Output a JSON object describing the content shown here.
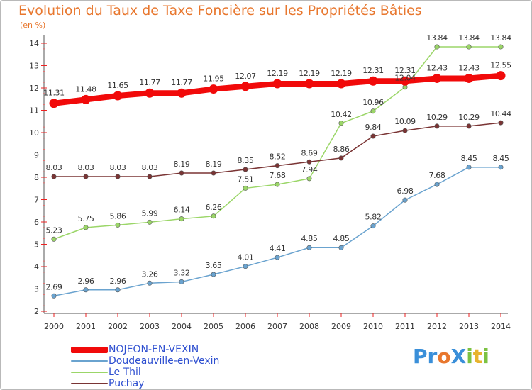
{
  "title": "Evolution du Taux de Taxe Foncière sur les Propriétés Bâties",
  "subtitle": "(en %)",
  "logo": {
    "text": "ProXiti",
    "letters": [
      {
        "ch": "P",
        "color": "#3a8fd9"
      },
      {
        "ch": "r",
        "color": "#3a8fd9"
      },
      {
        "ch": "o",
        "color": "#e8772e"
      },
      {
        "ch": "X",
        "color": "#3a8fd9"
      },
      {
        "ch": "i",
        "color": "#7cc242"
      },
      {
        "ch": "t",
        "color": "#e8b32e"
      },
      {
        "ch": "i",
        "color": "#7cc242"
      }
    ]
  },
  "chart_data": {
    "type": "line",
    "title": "Evolution du Taux de Taxe Foncière sur les Propriétés Bâties",
    "ylabel": "(en %)",
    "xlabel": "",
    "ylim": [
      2,
      14
    ],
    "yticks": [
      2,
      3,
      4,
      5,
      6,
      7,
      8,
      9,
      10,
      11,
      12,
      13,
      14
    ],
    "grid": false,
    "legend_position": "bottom-left",
    "x": [
      "2000",
      "2001",
      "2002",
      "2003",
      "2004",
      "2005",
      "2006",
      "2007",
      "2008",
      "2009",
      "2010",
      "2011",
      "2012",
      "2013",
      "2014"
    ],
    "series": [
      {
        "name": "NOJEON-EN-VEXIN",
        "color": "#f10a0a",
        "emphasis": true,
        "values": [
          11.31,
          11.48,
          11.65,
          11.77,
          11.77,
          11.95,
          12.07,
          12.19,
          12.19,
          12.19,
          12.31,
          12.31,
          12.43,
          12.43,
          12.55
        ],
        "labels": [
          "11.31",
          "11.48",
          "11.65",
          "11.77",
          "11.77",
          "11.95",
          "12.07",
          "12.19",
          "12.19",
          "12.19",
          "12.31",
          "12.31",
          "12.43",
          "12.43",
          "12.55"
        ]
      },
      {
        "name": "Doudeauville-en-Vexin",
        "color": "#6aa3cf",
        "emphasis": false,
        "values": [
          2.69,
          2.96,
          2.96,
          3.26,
          3.32,
          3.65,
          4.01,
          4.41,
          4.85,
          4.85,
          5.82,
          6.98,
          7.68,
          8.45,
          8.45
        ],
        "labels": [
          "2.69",
          "2.96",
          "2.96",
          "3.26",
          "3.32",
          "3.65",
          "4.01",
          "4.41",
          "4.85",
          "4.85",
          "5.82",
          "6.98",
          "7.68",
          "8.45",
          "8.45"
        ]
      },
      {
        "name": "Le Thil",
        "color": "#9bd668",
        "emphasis": false,
        "values": [
          5.23,
          5.75,
          5.86,
          5.99,
          6.14,
          6.26,
          7.51,
          7.68,
          7.94,
          10.42,
          10.96,
          12.04,
          13.84,
          13.84,
          13.84
        ],
        "labels": [
          "5.23",
          "5.75",
          "5.86",
          "5.99",
          "6.14",
          "6.26",
          "7.51",
          "7.68",
          "7.94",
          "10.42",
          "10.96",
          "12.04",
          "13.84",
          "13.84",
          "13.84"
        ]
      },
      {
        "name": "Puchay",
        "color": "#7a3434",
        "emphasis": false,
        "values": [
          8.03,
          8.03,
          8.03,
          8.03,
          8.19,
          8.19,
          8.35,
          8.52,
          8.69,
          8.86,
          9.84,
          10.09,
          10.29,
          10.29,
          10.44
        ],
        "labels": [
          "8.03",
          "8.03",
          "8.03",
          "8.03",
          "8.19",
          "8.19",
          "8.35",
          "8.52",
          "8.69",
          "8.86",
          "9.84",
          "10.09",
          "10.29",
          "10.29",
          "10.44"
        ]
      }
    ]
  }
}
